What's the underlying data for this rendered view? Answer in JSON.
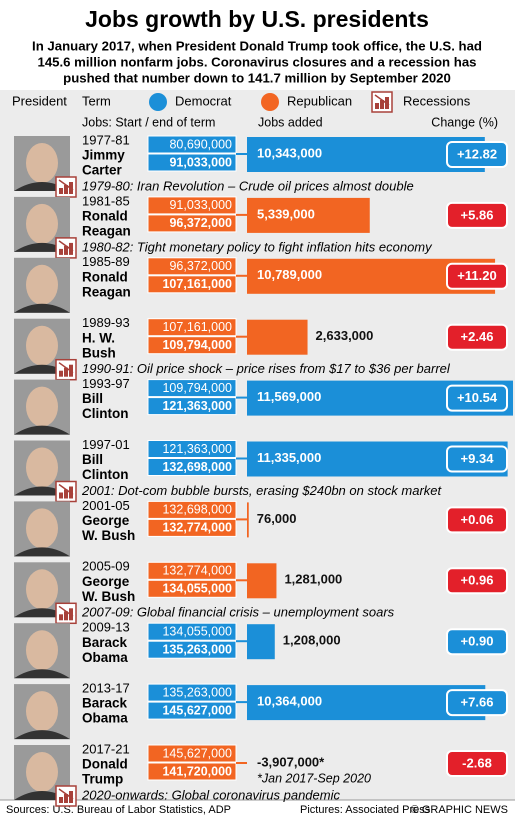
{
  "chart_data": {
    "type": "bar",
    "title": "Jobs growth by U.S. presidents",
    "subtitle": [
      "In January 2017, when President Donald Trump took office, the U.S. had",
      "145.6 million nonfarm jobs. Coronavirus closures and a recession has",
      "pushed that number down to 141.7 million by September 2020"
    ],
    "headers": {
      "president": "President",
      "term": "Term",
      "jobs": "Jobs: Start / end of term",
      "added": "Jobs added",
      "change": "Change (%)"
    },
    "legend": [
      {
        "name": "Democrat",
        "color": "#1b8fd8"
      },
      {
        "name": "Republican",
        "color": "#f26522"
      },
      {
        "name": "Recessions",
        "color": "#a8413a"
      }
    ],
    "rows": [
      {
        "term": "1977-81",
        "name": [
          "Jimmy",
          "Carter"
        ],
        "color": "#1b8fd8",
        "badge_color": "#1b8fd8",
        "start": 80690000,
        "start_label": "80,690,000",
        "end": 91033000,
        "end_label": "91,033,000",
        "added": 10343000,
        "added_label": "10,343,000",
        "change": 12.82,
        "change_label": "+12.82",
        "note": "1979-80: Iran Revolution – Crude oil prices almost double"
      },
      {
        "term": "1981-85",
        "name": [
          "Ronald",
          "Reagan"
        ],
        "color": "#f26522",
        "badge_color": "#e3202a",
        "start": 91033000,
        "start_label": "91,033,000",
        "end": 96372000,
        "end_label": "96,372,000",
        "added": 5339000,
        "added_label": "5,339,000",
        "change": 5.86,
        "change_label": "+5.86",
        "note": "1980-82: Tight monetary policy to fight inflation hits economy"
      },
      {
        "term": "1985-89",
        "name": [
          "Ronald",
          "Reagan"
        ],
        "color": "#f26522",
        "badge_color": "#e3202a",
        "start": 96372000,
        "start_label": "96,372,000",
        "end": 107161000,
        "end_label": "107,161,000",
        "added": 10789000,
        "added_label": "10,789,000",
        "change": 11.2,
        "change_label": "+11.20"
      },
      {
        "term": "1989-93",
        "name": [
          "H. W.",
          "Bush"
        ],
        "color": "#f26522",
        "badge_color": "#e3202a",
        "start": 107161000,
        "start_label": "107,161,000",
        "end": 109794000,
        "end_label": "109,794,000",
        "added": 2633000,
        "added_label": "2,633,000",
        "change": 2.46,
        "change_label": "+2.46",
        "note": "1990-91: Oil price shock – price rises from $17 to $36 per barrel"
      },
      {
        "term": "1993-97",
        "name": [
          "Bill",
          "Clinton"
        ],
        "color": "#1b8fd8",
        "badge_color": "#1b8fd8",
        "start": 109794000,
        "start_label": "109,794,000",
        "end": 121363000,
        "end_label": "121,363,000",
        "added": 11569000,
        "added_label": "11,569,000",
        "change": 10.54,
        "change_label": "+10.54"
      },
      {
        "term": "1997-01",
        "name": [
          "Bill",
          "Clinton"
        ],
        "color": "#1b8fd8",
        "badge_color": "#1b8fd8",
        "start": 121363000,
        "start_label": "121,363,000",
        "end": 132698000,
        "end_label": "132,698,000",
        "added": 11335000,
        "added_label": "11,335,000",
        "change": 9.34,
        "change_label": "+9.34",
        "note": "2001: Dot-com bubble bursts, erasing $240bn on stock market"
      },
      {
        "term": "2001-05",
        "name": [
          "George",
          "W. Bush"
        ],
        "color": "#f26522",
        "badge_color": "#e3202a",
        "start": 132698000,
        "start_label": "132,698,000",
        "end": 132774000,
        "end_label": "132,774,000",
        "added": 76000,
        "added_label": "76,000",
        "change": 0.06,
        "change_label": "+0.06"
      },
      {
        "term": "2005-09",
        "name": [
          "George",
          "W. Bush"
        ],
        "color": "#f26522",
        "badge_color": "#e3202a",
        "start": 132774000,
        "start_label": "132,774,000",
        "end": 134055000,
        "end_label": "134,055,000",
        "added": 1281000,
        "added_label": "1,281,000",
        "change": 0.96,
        "change_label": "+0.96",
        "note": "2007-09: Global financial crisis – unemployment soars"
      },
      {
        "term": "2009-13",
        "name": [
          "Barack",
          "Obama"
        ],
        "color": "#1b8fd8",
        "badge_color": "#1b8fd8",
        "start": 134055000,
        "start_label": "134,055,000",
        "end": 135263000,
        "end_label": "135,263,000",
        "added": 1208000,
        "added_label": "1,208,000",
        "change": 0.9,
        "change_label": "+0.90"
      },
      {
        "term": "2013-17",
        "name": [
          "Barack",
          "Obama"
        ],
        "color": "#1b8fd8",
        "badge_color": "#1b8fd8",
        "start": 135263000,
        "start_label": "135,263,000",
        "end": 145627000,
        "end_label": "145,627,000",
        "added": 10364000,
        "added_label": "10,364,000",
        "change": 7.66,
        "change_label": "+7.66"
      },
      {
        "term": "2017-21",
        "name": [
          "Donald",
          "Trump"
        ],
        "color": "#f26522",
        "badge_color": "#e3202a",
        "start": 145627000,
        "start_label": "145,627,000",
        "end": 141720000,
        "end_label": "141,720,000",
        "added": -3907000,
        "added_label": "-3,907,000*",
        "added_note": "*Jan 2017-Sep 2020",
        "change": -2.68,
        "change_label": "-2.68",
        "note": "2020-onwards: Global coronavirus pandemic"
      }
    ],
    "source": "Sources: U.S. Bureau of Labor Statistics, ADP",
    "pictures": "Pictures: Associated Press",
    "credit": "© GRAPHIC NEWS"
  }
}
